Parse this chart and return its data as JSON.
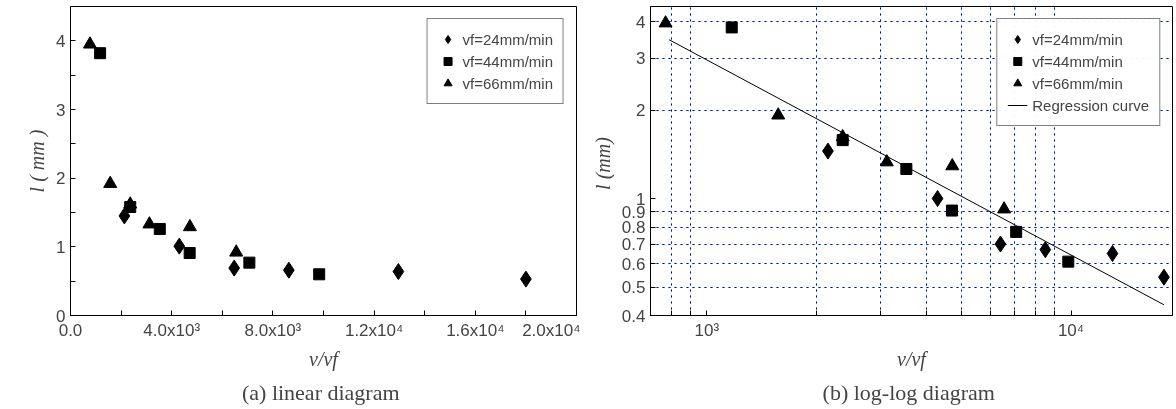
{
  "chart_data": [
    {
      "type": "scatter",
      "title": "(a)  linear diagram",
      "xlabel": "v/vf",
      "ylabel": "l ( mm )",
      "xlim": [
        0,
        20000
      ],
      "ylim": [
        0,
        4.5
      ],
      "xticks": [
        {
          "value": 0,
          "label": "0.0"
        },
        {
          "value": 2000,
          "label": null
        },
        {
          "value": 4000,
          "label": "4.0x10³"
        },
        {
          "value": 6000,
          "label": null
        },
        {
          "value": 8000,
          "label": "8.0x10³"
        },
        {
          "value": 10000,
          "label": null
        },
        {
          "value": 12000,
          "label": "1.2x10⁴"
        },
        {
          "value": 14000,
          "label": null
        },
        {
          "value": 16000,
          "label": "1.6x10⁴"
        },
        {
          "value": 18000,
          "label": null
        },
        {
          "value": 20000,
          "label": "2.0x10⁴"
        }
      ],
      "yticks": [
        0,
        {
          "value": 0.5,
          "label": null
        },
        1,
        {
          "value": 1.5,
          "label": null
        },
        2,
        {
          "value": 2.5,
          "label": null
        },
        3,
        {
          "value": 3.5,
          "label": null
        },
        4
      ],
      "grid": false,
      "legend": "top right",
      "series": [
        {
          "name": "vf=24mm/min",
          "color": "#000000",
          "marker": "diamond",
          "x": [
            2130,
            4300,
            6470,
            8630,
            12960,
            18000
          ],
          "values": [
            1.45,
            1.01,
            0.69,
            0.66,
            0.64,
            0.53
          ]
        },
        {
          "name": "vf=44mm/min",
          "color": "#000000",
          "marker": "square",
          "x": [
            1170,
            2360,
            3530,
            4710,
            7070,
            9830
          ],
          "values": [
            3.82,
            1.58,
            1.26,
            0.91,
            0.77,
            0.6
          ]
        },
        {
          "name": "vf=66mm/min",
          "color": "#000000",
          "marker": "triangle",
          "x": [
            770,
            1570,
            2360,
            3120,
            4720,
            6550
          ],
          "values": [
            3.95,
            1.92,
            1.62,
            1.33,
            1.29,
            0.92
          ]
        }
      ]
    },
    {
      "type": "scatter",
      "title": "(b)  log-log diagram",
      "xlabel": "v/vf",
      "ylabel": "l  (mm)",
      "log": "xy",
      "xlim": [
        700,
        19000
      ],
      "ylim": [
        0.4,
        4.5
      ],
      "xticks": [
        {
          "value": 800,
          "label": null
        },
        {
          "value": 900,
          "label": null
        },
        {
          "value": 1000,
          "label": "10³"
        },
        {
          "value": 2000,
          "label": null
        },
        {
          "value": 3000,
          "label": null
        },
        {
          "value": 4000,
          "label": null
        },
        {
          "value": 5000,
          "label": null
        },
        {
          "value": 6000,
          "label": null
        },
        {
          "value": 7000,
          "label": null
        },
        {
          "value": 8000,
          "label": null
        },
        {
          "value": 9000,
          "label": null
        },
        {
          "value": 10000,
          "label": "10⁴"
        }
      ],
      "yticks": [
        0.4,
        0.5,
        0.6,
        0.7,
        0.8,
        0.9,
        1,
        2,
        3,
        4
      ],
      "grid": true,
      "legend": "top right",
      "series": [
        {
          "name": "vf=24mm/min",
          "color": "#000000",
          "marker": "diamond",
          "x": [
            2150,
            4300,
            6400,
            8500,
            13000,
            18000
          ],
          "values": [
            1.45,
            1.0,
            0.7,
            0.67,
            0.65,
            0.54
          ]
        },
        {
          "name": "vf=44mm/min",
          "color": "#000000",
          "marker": "square",
          "x": [
            1170,
            2360,
            3530,
            4710,
            7070,
            9830
          ],
          "values": [
            3.82,
            1.58,
            1.26,
            0.91,
            0.77,
            0.61
          ]
        },
        {
          "name": "vf=66mm/min",
          "color": "#000000",
          "marker": "triangle",
          "x": [
            770,
            1570,
            2360,
            3120,
            4720,
            6550
          ],
          "values": [
            3.95,
            1.92,
            1.62,
            1.33,
            1.29,
            0.92
          ]
        },
        {
          "name": "Regression curve",
          "type": "line",
          "color": "#000000",
          "x": [
            787,
            18000
          ],
          "values": [
            3.47,
            0.435
          ]
        }
      ]
    }
  ]
}
